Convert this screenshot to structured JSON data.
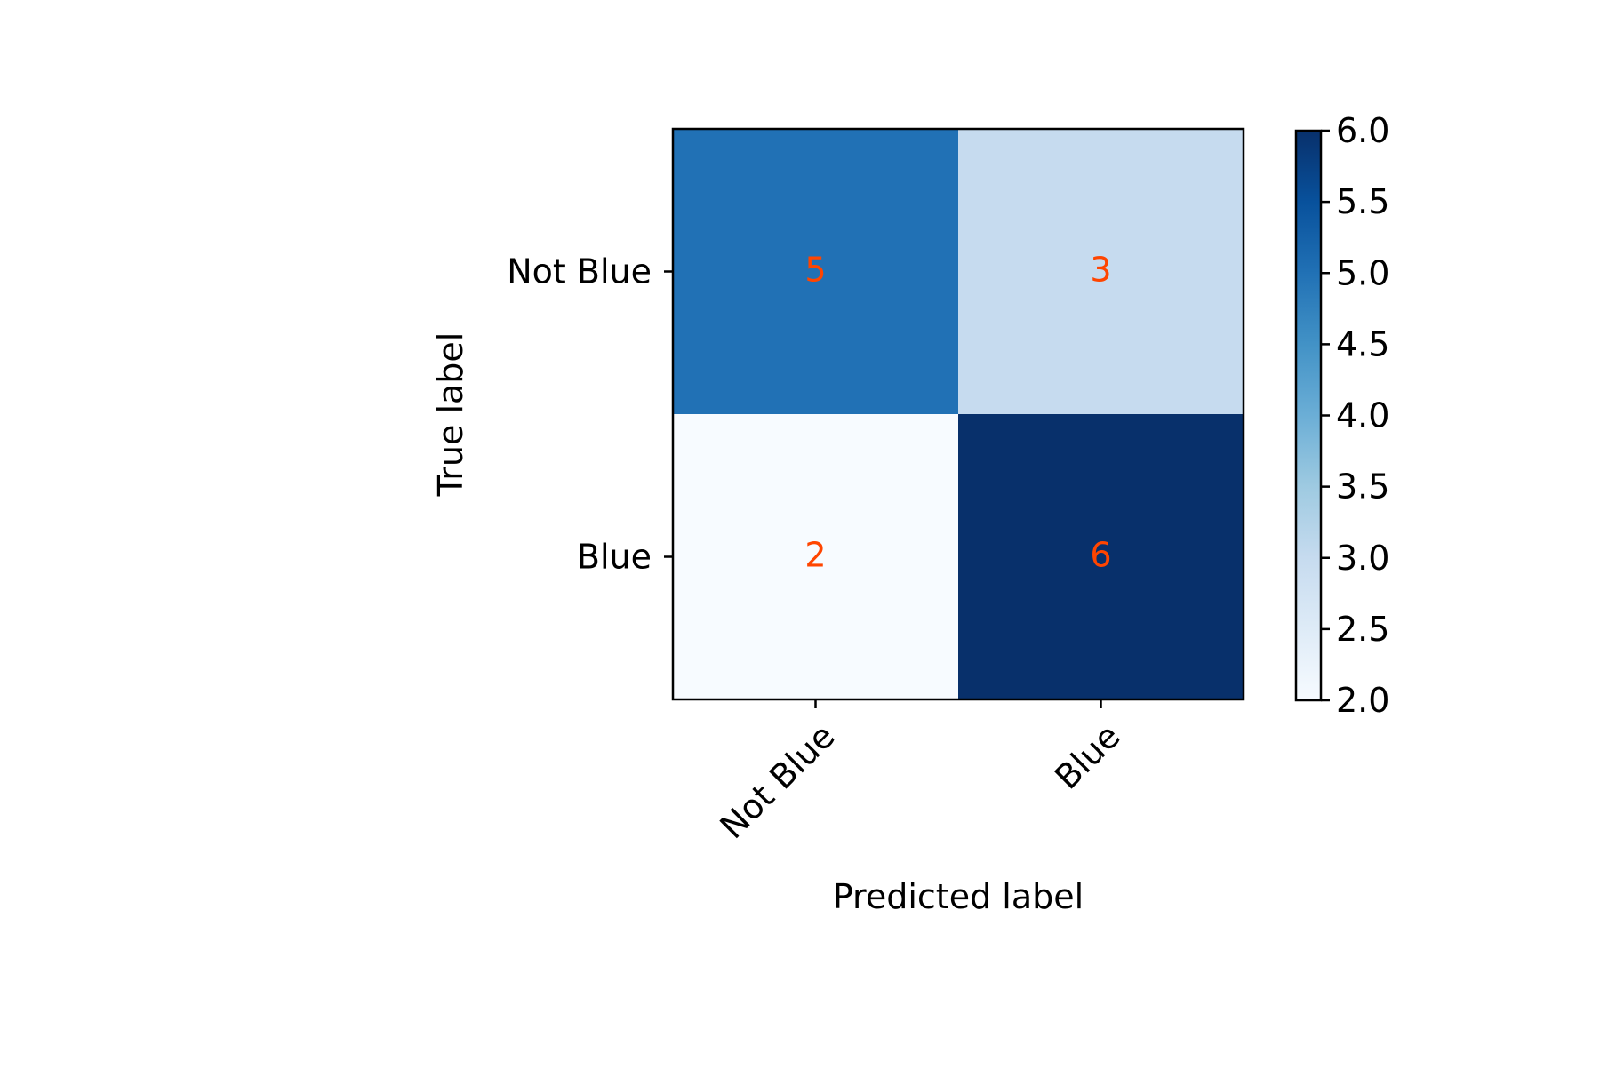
{
  "chart_data": {
    "type": "heatmap",
    "title": "",
    "xlabel": "Predicted label",
    "ylabel": "True label",
    "x_categories": [
      "Not Blue",
      "Blue"
    ],
    "y_categories": [
      "Not Blue",
      "Blue"
    ],
    "values": [
      [
        5,
        3
      ],
      [
        2,
        6
      ]
    ],
    "colormap": "Blues",
    "annotation_color": "#FF4500",
    "colorbar": {
      "min": 2.0,
      "max": 6.0,
      "ticks": [
        "2.0",
        "2.5",
        "3.0",
        "3.5",
        "4.0",
        "4.5",
        "5.0",
        "5.5",
        "6.0"
      ]
    }
  }
}
